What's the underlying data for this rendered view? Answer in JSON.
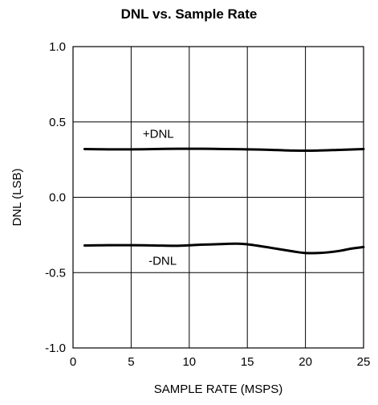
{
  "chart_data": {
    "type": "line",
    "title": "DNL vs. Sample Rate",
    "xlabel": "SAMPLE RATE (MSPS)",
    "ylabel": "DNL (LSB)",
    "xlim": [
      0,
      25
    ],
    "ylim": [
      -1.0,
      1.0
    ],
    "xticks": [
      0,
      5,
      10,
      15,
      20,
      25
    ],
    "yticks": [
      1.0,
      0.5,
      0.0,
      -0.5,
      -1.0
    ],
    "xtick_labels": [
      "0",
      "5",
      "10",
      "15",
      "20",
      "25"
    ],
    "ytick_labels": [
      "1.0",
      "0.5",
      "0.0",
      "-0.5",
      "-1.0"
    ],
    "grid": true,
    "series": [
      {
        "name": "+DNL",
        "color": "#000000",
        "x": [
          1,
          3,
          5,
          7,
          9,
          11,
          13,
          15,
          17,
          19,
          21,
          23,
          25
        ],
        "y": [
          0.32,
          0.318,
          0.318,
          0.32,
          0.322,
          0.322,
          0.32,
          0.318,
          0.315,
          0.31,
          0.31,
          0.315,
          0.32
        ]
      },
      {
        "name": "-DNL",
        "color": "#000000",
        "x": [
          1,
          3,
          5,
          7,
          9,
          11,
          13,
          14,
          15,
          17,
          19,
          20,
          21,
          22,
          23,
          24,
          25
        ],
        "y": [
          -0.32,
          -0.318,
          -0.318,
          -0.32,
          -0.322,
          -0.315,
          -0.31,
          -0.308,
          -0.312,
          -0.335,
          -0.36,
          -0.37,
          -0.37,
          -0.365,
          -0.355,
          -0.34,
          -0.33
        ]
      }
    ]
  }
}
